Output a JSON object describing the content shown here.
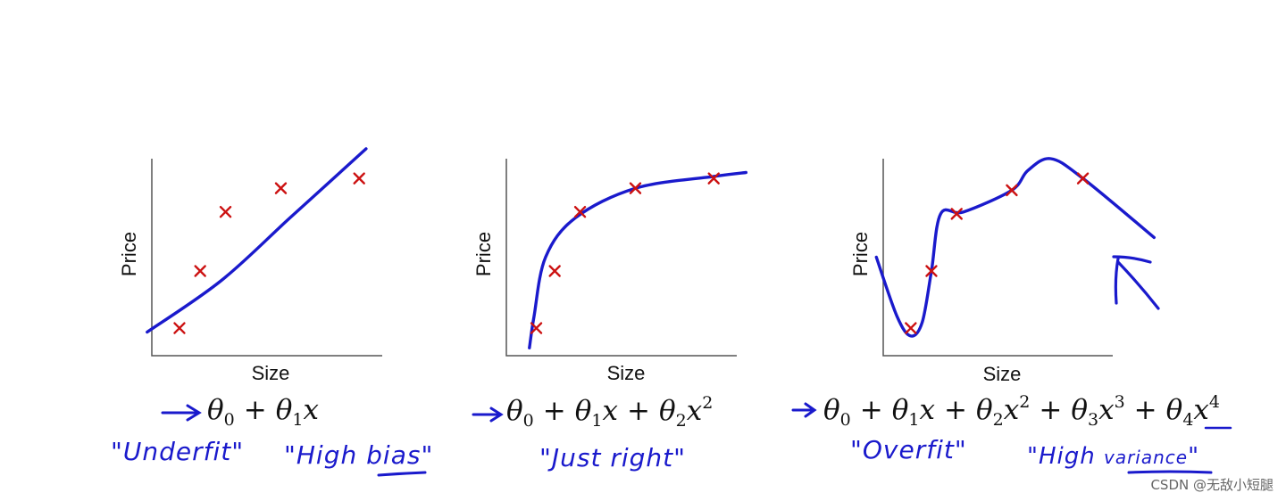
{
  "chart_data": [
    {
      "type": "scatter",
      "xlabel": "Size",
      "ylabel": "Price",
      "points": [
        [
          0.12,
          0.14
        ],
        [
          0.21,
          0.43
        ],
        [
          0.32,
          0.73
        ],
        [
          0.56,
          0.85
        ],
        [
          0.9,
          0.9
        ]
      ],
      "fit": [
        [
          -0.02,
          0.12
        ],
        [
          0.3,
          0.38
        ],
        [
          0.6,
          0.7
        ],
        [
          0.93,
          1.05
        ]
      ],
      "formula": "→ θ0 + θ1x",
      "notes": [
        "\"Underfit\"",
        "\"High bias\""
      ]
    },
    {
      "type": "scatter",
      "xlabel": "Size",
      "ylabel": "Price",
      "points": [
        [
          0.13,
          0.14
        ],
        [
          0.21,
          0.43
        ],
        [
          0.32,
          0.73
        ],
        [
          0.56,
          0.85
        ],
        [
          0.9,
          0.9
        ]
      ],
      "fit": [
        [
          0.1,
          0.04
        ],
        [
          0.12,
          0.2
        ],
        [
          0.17,
          0.5
        ],
        [
          0.3,
          0.7
        ],
        [
          0.56,
          0.85
        ],
        [
          0.9,
          0.91
        ],
        [
          1.04,
          0.93
        ]
      ],
      "formula": "→ θ0 + θ1x + θ2x²",
      "notes": [
        "\"Just right\""
      ]
    },
    {
      "type": "scatter",
      "xlabel": "Size",
      "ylabel": "Price",
      "points": [
        [
          0.12,
          0.14
        ],
        [
          0.21,
          0.43
        ],
        [
          0.32,
          0.72
        ],
        [
          0.56,
          0.84
        ],
        [
          0.87,
          0.9
        ]
      ],
      "fit": [
        [
          -0.03,
          0.5
        ],
        [
          0.06,
          0.2
        ],
        [
          0.12,
          0.1
        ],
        [
          0.17,
          0.17
        ],
        [
          0.21,
          0.43
        ],
        [
          0.25,
          0.72
        ],
        [
          0.35,
          0.73
        ],
        [
          0.56,
          0.84
        ],
        [
          0.63,
          0.94
        ],
        [
          0.73,
          1.0
        ],
        [
          0.87,
          0.9
        ],
        [
          1.18,
          0.6
        ]
      ],
      "formula": "→ θ0 + θ1x + θ2x² + θ3x³ + θ4x⁴",
      "notes": [
        "\"Overfit\"",
        "\"High variance\""
      ]
    }
  ],
  "labels": {
    "size": "Size",
    "price": "Price",
    "underfit": "\"Underfit\"",
    "high_bias_prefix": "\"High ",
    "high_bias_word": "bias",
    "high_bias_close": "\"",
    "just_right": "\"Just right\"",
    "overfit": "\"Overfit\"",
    "high_variance_prefix": "\"High ",
    "high_variance_word": "variance",
    "high_variance_close": "\""
  },
  "formulas": {
    "theta": "θ",
    "plus": "+",
    "x": "x",
    "sub0": "0",
    "sub1": "1",
    "sub2": "2",
    "sub3": "3",
    "sub4": "4",
    "sq": "2",
    "cube": "3",
    "quart": "4"
  },
  "watermark": "CSDN @无敌小短腿",
  "colors": {
    "curve": "#1a1acc",
    "points": "#cc1111",
    "axis": "#555555"
  }
}
